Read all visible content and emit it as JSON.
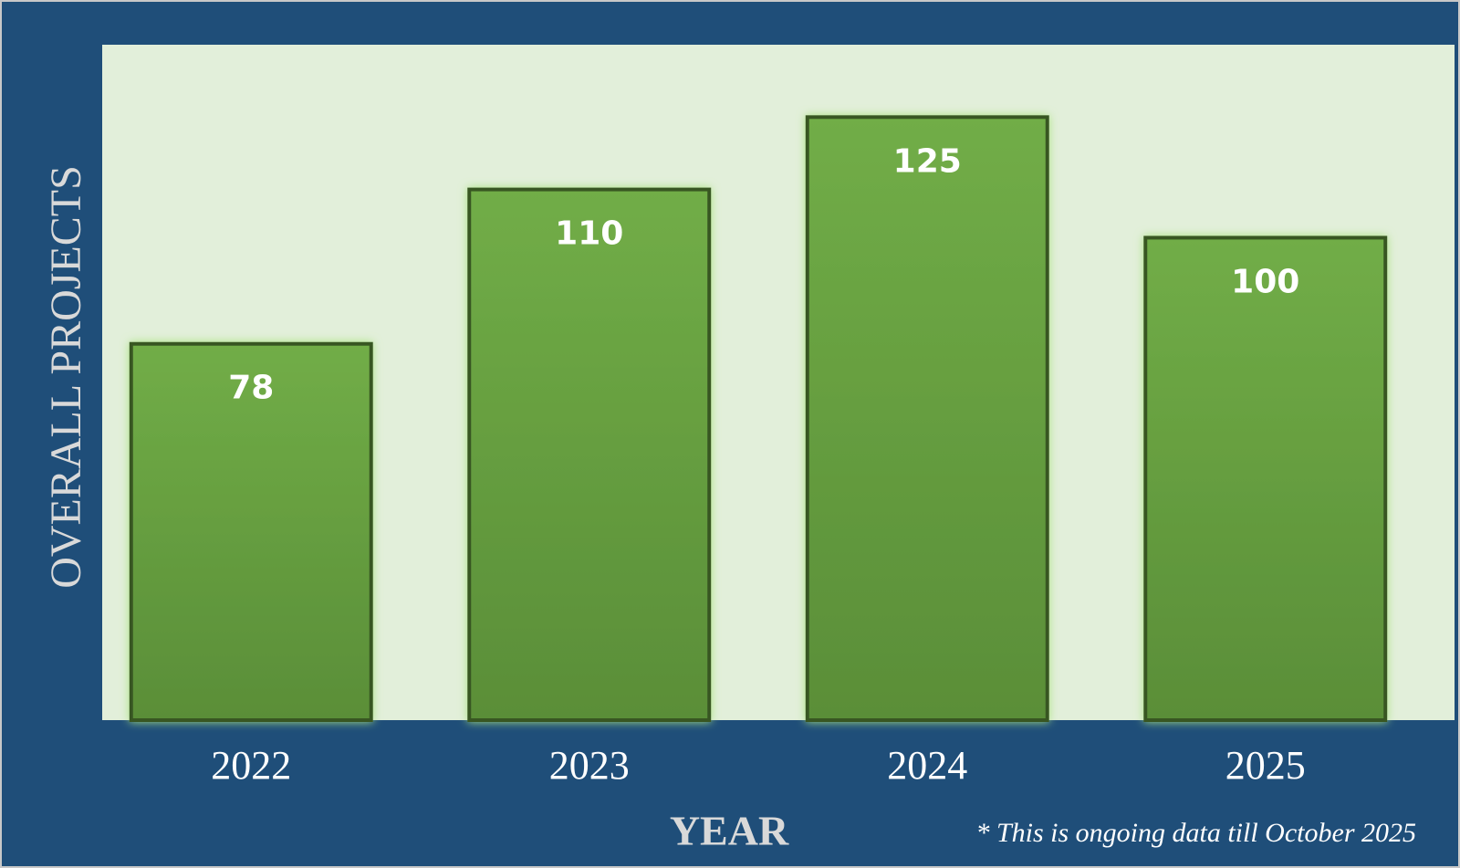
{
  "chart_data": {
    "type": "bar",
    "x_label": "YEAR",
    "y_label": "OVERALL PROJECTS",
    "annotation": "* This is ongoing data till October 2025",
    "categories": [
      "2022",
      "2023",
      "2024",
      "2025"
    ],
    "values": [
      78,
      110,
      125,
      100
    ],
    "color": "#6aa843",
    "ylim": [
      0,
      140
    ]
  }
}
